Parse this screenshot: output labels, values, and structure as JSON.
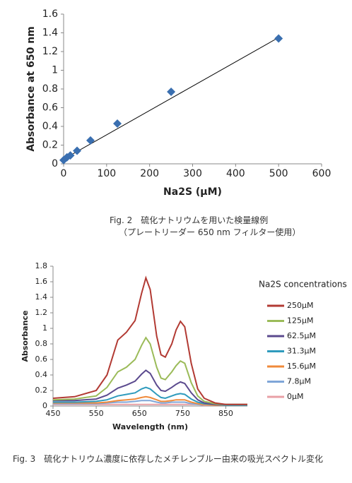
{
  "chart_data": [
    {
      "type": "scatter",
      "caption": [
        "Fig. 2　硫化ナトリウムを用いた検量線例",
        "（プレートリーダー 650 nm フィルター使用）"
      ],
      "xlabel": "Na2S (μM)",
      "ylabel": "Absorbance at 650 nm",
      "x": [
        0,
        7.8,
        15.6,
        31.3,
        62.5,
        125,
        250,
        500
      ],
      "values": [
        0.04,
        0.07,
        0.09,
        0.14,
        0.25,
        0.43,
        0.77,
        1.34
      ],
      "color": "#3a6fb0",
      "trendline": {
        "x": [
          0,
          500
        ],
        "values": [
          0.05,
          1.35
        ]
      },
      "xlim": [
        0,
        600
      ],
      "xticks": [
        0,
        100,
        200,
        300,
        400,
        500,
        600
      ],
      "ylim": [
        0,
        1.6
      ],
      "yticks": [
        0,
        0.2,
        0.4,
        0.6,
        0.8,
        1,
        1.2,
        1.4,
        1.6
      ]
    },
    {
      "type": "line",
      "caption": "Fig. 3　硫化ナトリウム濃度に依存したメチレンブルー由来の吸光スペクトル変化",
      "xlabel": "Wavelength (nm)",
      "ylabel": "Absorbance",
      "legend_title": "Na2S concentrations",
      "x": [
        450,
        500,
        550,
        575,
        600,
        620,
        640,
        655,
        665,
        675,
        690,
        700,
        710,
        725,
        735,
        745,
        755,
        770,
        785,
        800,
        825,
        850,
        900
      ],
      "series": [
        {
          "name": "250μM",
          "color": "#b23a33",
          "values": [
            0.1,
            0.12,
            0.2,
            0.4,
            0.85,
            0.95,
            1.1,
            1.45,
            1.65,
            1.5,
            0.9,
            0.66,
            0.63,
            0.8,
            0.98,
            1.09,
            1.02,
            0.55,
            0.22,
            0.1,
            0.04,
            0.02,
            0.02
          ]
        },
        {
          "name": "125μM",
          "color": "#9bbb59",
          "values": [
            0.08,
            0.09,
            0.13,
            0.24,
            0.44,
            0.5,
            0.6,
            0.78,
            0.88,
            0.8,
            0.5,
            0.36,
            0.34,
            0.44,
            0.52,
            0.58,
            0.55,
            0.3,
            0.13,
            0.06,
            0.03,
            0.02,
            0.02
          ]
        },
        {
          "name": "62.5μM",
          "color": "#5b4a8e",
          "values": [
            0.07,
            0.07,
            0.09,
            0.14,
            0.23,
            0.27,
            0.32,
            0.41,
            0.46,
            0.42,
            0.27,
            0.2,
            0.19,
            0.24,
            0.28,
            0.31,
            0.29,
            0.17,
            0.08,
            0.04,
            0.02,
            0.02,
            0.02
          ]
        },
        {
          "name": "31.3μM",
          "color": "#2f9bbd",
          "values": [
            0.05,
            0.05,
            0.06,
            0.08,
            0.13,
            0.15,
            0.17,
            0.22,
            0.24,
            0.22,
            0.15,
            0.11,
            0.1,
            0.13,
            0.15,
            0.16,
            0.15,
            0.09,
            0.05,
            0.03,
            0.02,
            0.01,
            0.01
          ]
        },
        {
          "name": "15.6μM",
          "color": "#f08a3a",
          "values": [
            0.04,
            0.04,
            0.04,
            0.05,
            0.07,
            0.08,
            0.09,
            0.11,
            0.12,
            0.11,
            0.08,
            0.06,
            0.06,
            0.07,
            0.08,
            0.08,
            0.08,
            0.05,
            0.03,
            0.02,
            0.01,
            0.01,
            0.01
          ]
        },
        {
          "name": "7.8μM",
          "color": "#7fa6d8",
          "values": [
            0.03,
            0.03,
            0.03,
            0.04,
            0.05,
            0.05,
            0.06,
            0.07,
            0.07,
            0.07,
            0.05,
            0.04,
            0.04,
            0.05,
            0.05,
            0.05,
            0.05,
            0.03,
            0.02,
            0.02,
            0.01,
            0.01,
            0.01
          ]
        },
        {
          "name": "0μM",
          "color": "#e8a0a6",
          "values": [
            0.02,
            0.02,
            0.02,
            0.02,
            0.02,
            0.02,
            0.02,
            0.02,
            0.02,
            0.02,
            0.02,
            0.02,
            0.02,
            0.02,
            0.02,
            0.02,
            0.02,
            0.02,
            0.02,
            0.01,
            0.01,
            0.01,
            0.01
          ]
        }
      ],
      "xlim": [
        450,
        900
      ],
      "xticks": [
        450,
        550,
        650,
        750,
        850
      ],
      "ylim": [
        0,
        1.8
      ],
      "yticks": [
        0,
        0.2,
        0.4,
        0.6,
        0.8,
        1,
        1.2,
        1.4,
        1.6,
        1.8
      ]
    }
  ]
}
